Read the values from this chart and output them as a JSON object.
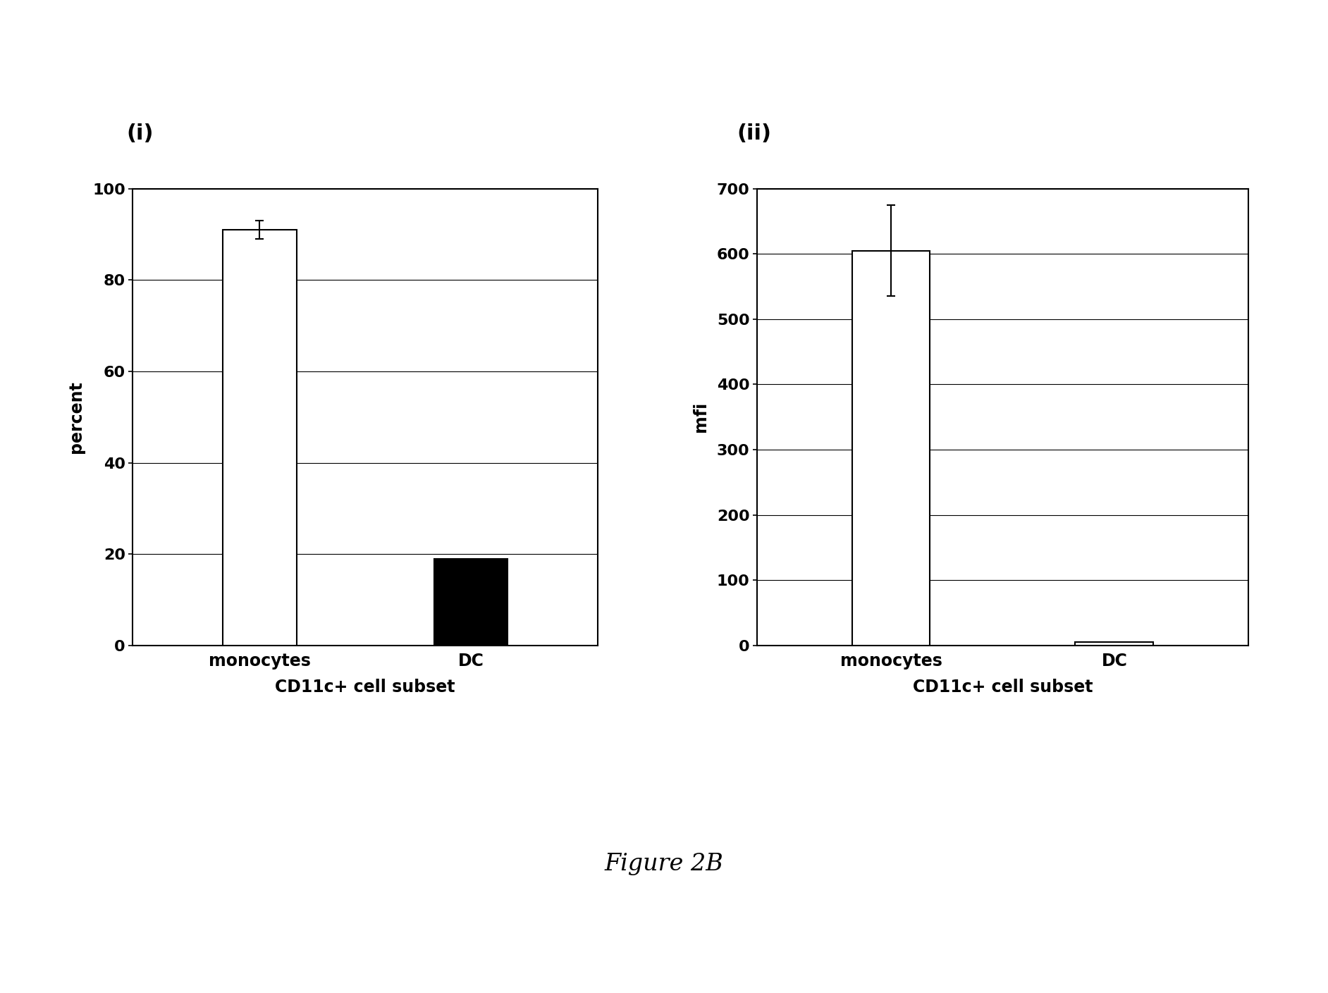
{
  "panel_i": {
    "categories": [
      "monocytes",
      "DC"
    ],
    "values": [
      91,
      19
    ],
    "colors": [
      "#ffffff",
      "#000000"
    ],
    "errors": [
      2,
      0
    ],
    "ylabel": "percent",
    "xlabel": "CD11c+ cell subset",
    "ylim": [
      0,
      100
    ],
    "yticks": [
      0,
      20,
      40,
      60,
      80,
      100
    ],
    "label": "(i)"
  },
  "panel_ii": {
    "categories": [
      "monocytes",
      "DC"
    ],
    "values": [
      605,
      5
    ],
    "colors": [
      "#ffffff",
      "#ffffff"
    ],
    "errors": [
      70,
      0
    ],
    "ylabel": "mfi",
    "xlabel": "CD11c+ cell subset",
    "ylim": [
      0,
      700
    ],
    "yticks": [
      0,
      100,
      200,
      300,
      400,
      500,
      600,
      700
    ],
    "label": "(ii)"
  },
  "figure_label": "Figure 2B",
  "background_color": "#ffffff",
  "edge_color": "#000000",
  "bar_width": 0.35
}
